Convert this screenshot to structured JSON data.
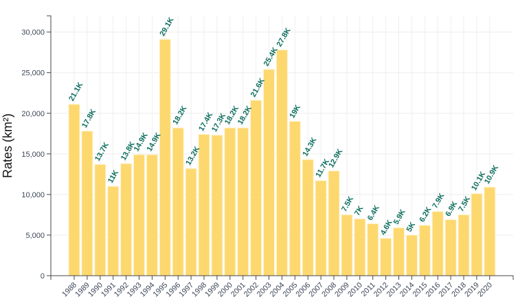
{
  "chart_data": {
    "type": "bar",
    "title": "",
    "xlabel": "",
    "ylabel": "Rates (km²)",
    "ylim": [
      0,
      32000
    ],
    "yticks": [
      0,
      5000,
      10000,
      15000,
      20000,
      25000,
      30000
    ],
    "ytick_labels": [
      "0",
      "5,000",
      "10,000",
      "15,000",
      "20,000",
      "25,000",
      "30,000"
    ],
    "grid": true,
    "categories": [
      "1988",
      "1989",
      "1990",
      "1991",
      "1992",
      "1993",
      "1994",
      "1995",
      "1996",
      "1997",
      "1998",
      "1999",
      "2000",
      "2001",
      "2002",
      "2003",
      "2004",
      "2005",
      "2006",
      "2007",
      "2008",
      "2009",
      "2010",
      "2011",
      "2012",
      "2013",
      "2014",
      "2015",
      "2016",
      "2017",
      "2018",
      "2019",
      "2020"
    ],
    "values": [
      21100,
      17800,
      13700,
      11000,
      13800,
      14900,
      14900,
      29100,
      18200,
      13200,
      17400,
      17300,
      18200,
      18200,
      21600,
      25400,
      27800,
      19000,
      14300,
      11700,
      12900,
      7500,
      7000,
      6400,
      4600,
      5900,
      5000,
      6200,
      7900,
      6900,
      7500,
      10100,
      10900
    ],
    "data_labels": [
      "21.1K",
      "17.8K",
      "13.7K",
      "11K",
      "13.8K",
      "14.9K",
      "14.9K",
      "29.1K",
      "18.2K",
      "13.2K",
      "17.4K",
      "17.3K",
      "18.2K",
      "18.2K",
      "21.6K",
      "25.4K",
      "27.8K",
      "19K",
      "14.3K",
      "11.7K",
      "12.9K",
      "7.5K",
      "7K",
      "6.4K",
      "4.6K",
      "5.9K",
      "5K",
      "6.2K",
      "7.9K",
      "6.9K",
      "7.5K",
      "10.1K",
      "10.9K"
    ],
    "colors": {
      "bar": "#fdd86f",
      "bar_border": "#fff3cf",
      "data_label": "#0d6e5f",
      "axis": "#444444",
      "grid": "#eeeeee",
      "tick_text": "#3b4556"
    }
  }
}
